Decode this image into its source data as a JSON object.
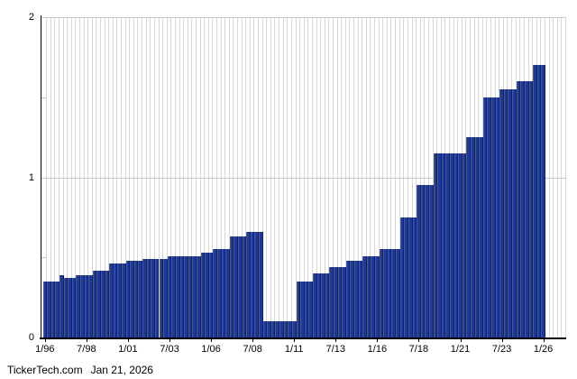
{
  "footer": {
    "site": "TickerTech.com",
    "date": "Jan 21, 2026"
  },
  "colors": {
    "bar_fill": "#1e3a96",
    "bar_edge_light": "#4057ab",
    "bar_edge_dark": "#122457",
    "vertical_gridline": "#d8d8d8",
    "horizontal_gridline": "#c9c9c9",
    "axis": "#000000",
    "background": "#ffffff",
    "label_text": "#000000"
  },
  "chart_data": {
    "type": "bar",
    "description": "Quarterly dividend per share history, 1/96 through 1/26",
    "x_tick_labels": [
      "1/96",
      "7/98",
      "1/01",
      "7/03",
      "1/06",
      "7/08",
      "1/11",
      "7/13",
      "1/16",
      "7/18",
      "1/21",
      "7/23",
      "1/26"
    ],
    "x_tick_bar_indices": [
      0,
      10,
      20,
      30,
      40,
      50,
      60,
      70,
      80,
      90,
      100,
      110,
      120
    ],
    "bar_count": 121,
    "x_frequency": "quarterly",
    "ylim": [
      0,
      2
    ],
    "y_ticks": [
      0,
      1,
      2
    ],
    "y_minor_ticks": [
      0.5,
      1.5
    ],
    "grid": {
      "vertical_per_bar": true,
      "horizontal_at": [
        1,
        2
      ]
    },
    "legend": "none",
    "values": [
      0.35,
      0.35,
      0.35,
      0.35,
      0.39,
      0.37,
      0.37,
      0.37,
      0.39,
      0.39,
      0.39,
      0.39,
      0.42,
      0.42,
      0.42,
      0.42,
      0.46,
      0.46,
      0.46,
      0.46,
      0.48,
      0.48,
      0.48,
      0.48,
      0.49,
      0.49,
      0.49,
      0.49,
      0.49,
      0.49,
      0.51,
      0.51,
      0.51,
      0.51,
      0.51,
      0.51,
      0.51,
      0.51,
      0.53,
      0.53,
      0.53,
      0.55,
      0.55,
      0.55,
      0.55,
      0.63,
      0.63,
      0.63,
      0.63,
      0.66,
      0.66,
      0.66,
      0.66,
      0.1,
      0.1,
      0.1,
      0.1,
      0.1,
      0.1,
      0.1,
      0.1,
      0.35,
      0.35,
      0.35,
      0.35,
      0.4,
      0.4,
      0.4,
      0.4,
      0.44,
      0.44,
      0.44,
      0.44,
      0.48,
      0.48,
      0.48,
      0.48,
      0.51,
      0.51,
      0.51,
      0.51,
      0.55,
      0.55,
      0.55,
      0.55,
      0.55,
      0.75,
      0.75,
      0.75,
      0.75,
      0.95,
      0.95,
      0.95,
      0.95,
      1.15,
      1.15,
      1.15,
      1.15,
      1.15,
      1.15,
      1.15,
      1.15,
      1.25,
      1.25,
      1.25,
      1.25,
      1.5,
      1.5,
      1.5,
      1.5,
      1.55,
      1.55,
      1.55,
      1.55,
      1.6,
      1.6,
      1.6,
      1.6,
      1.7,
      1.7,
      1.7
    ]
  }
}
